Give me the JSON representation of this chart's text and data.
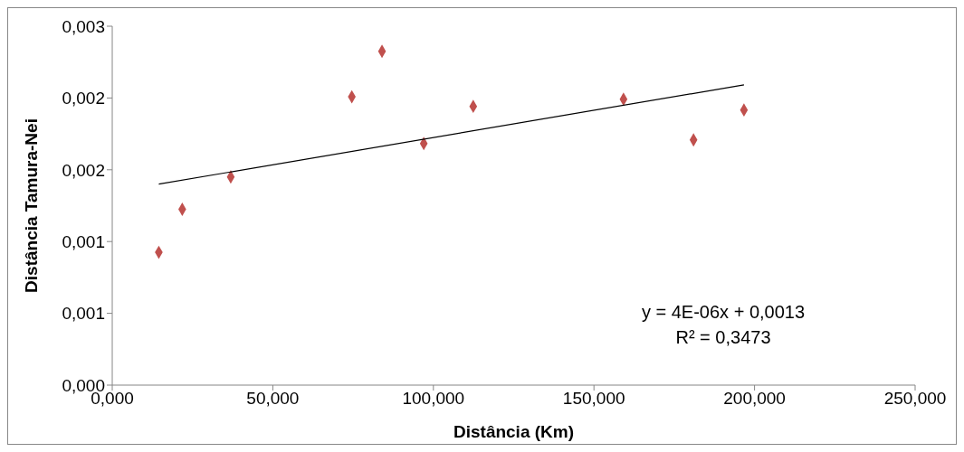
{
  "chart_data": {
    "type": "scatter",
    "xlabel": "Distância (Km)",
    "ylabel": "Distância Tamura-Nei",
    "xlim": [
      0,
      250
    ],
    "xticks": [
      {
        "value": 0,
        "label": "0,000"
      },
      {
        "value": 50,
        "label": "50,000"
      },
      {
        "value": 100,
        "label": "100,000"
      },
      {
        "value": 150,
        "label": "150,000"
      },
      {
        "value": 200,
        "label": "200,000"
      },
      {
        "value": 250,
        "label": "250,000"
      }
    ],
    "ylim": [
      0,
      0.003
    ],
    "yticks": [
      {
        "value": 0,
        "label": "0,000"
      },
      {
        "value": 0.0006,
        "label": "0,001"
      },
      {
        "value": 0.0012,
        "label": "0,001"
      },
      {
        "value": 0.0018,
        "label": "0,002"
      },
      {
        "value": 0.0024,
        "label": "0,002"
      },
      {
        "value": 0.003,
        "label": "0,003"
      }
    ],
    "grid": false,
    "legend": false,
    "series": [
      {
        "color": "#c0504d",
        "marker": "diamond",
        "x": [
          14.5,
          21.8,
          36.9,
          74.6,
          84.0,
          97.0,
          112.4,
          159.2,
          181.0,
          196.7
        ],
        "values": [
          0.00111,
          0.00147,
          0.00174,
          0.00241,
          0.00279,
          0.00202,
          0.00233,
          0.00239,
          0.00205,
          0.0023
        ]
      },
      {
        "type": "line",
        "color": "#000000",
        "x": [
          14.5,
          196.7
        ],
        "values": [
          0.00168,
          0.00251
        ]
      }
    ],
    "annotations": [
      "y = 4E-06x + 0,0013",
      "R² = 0,3473"
    ]
  }
}
